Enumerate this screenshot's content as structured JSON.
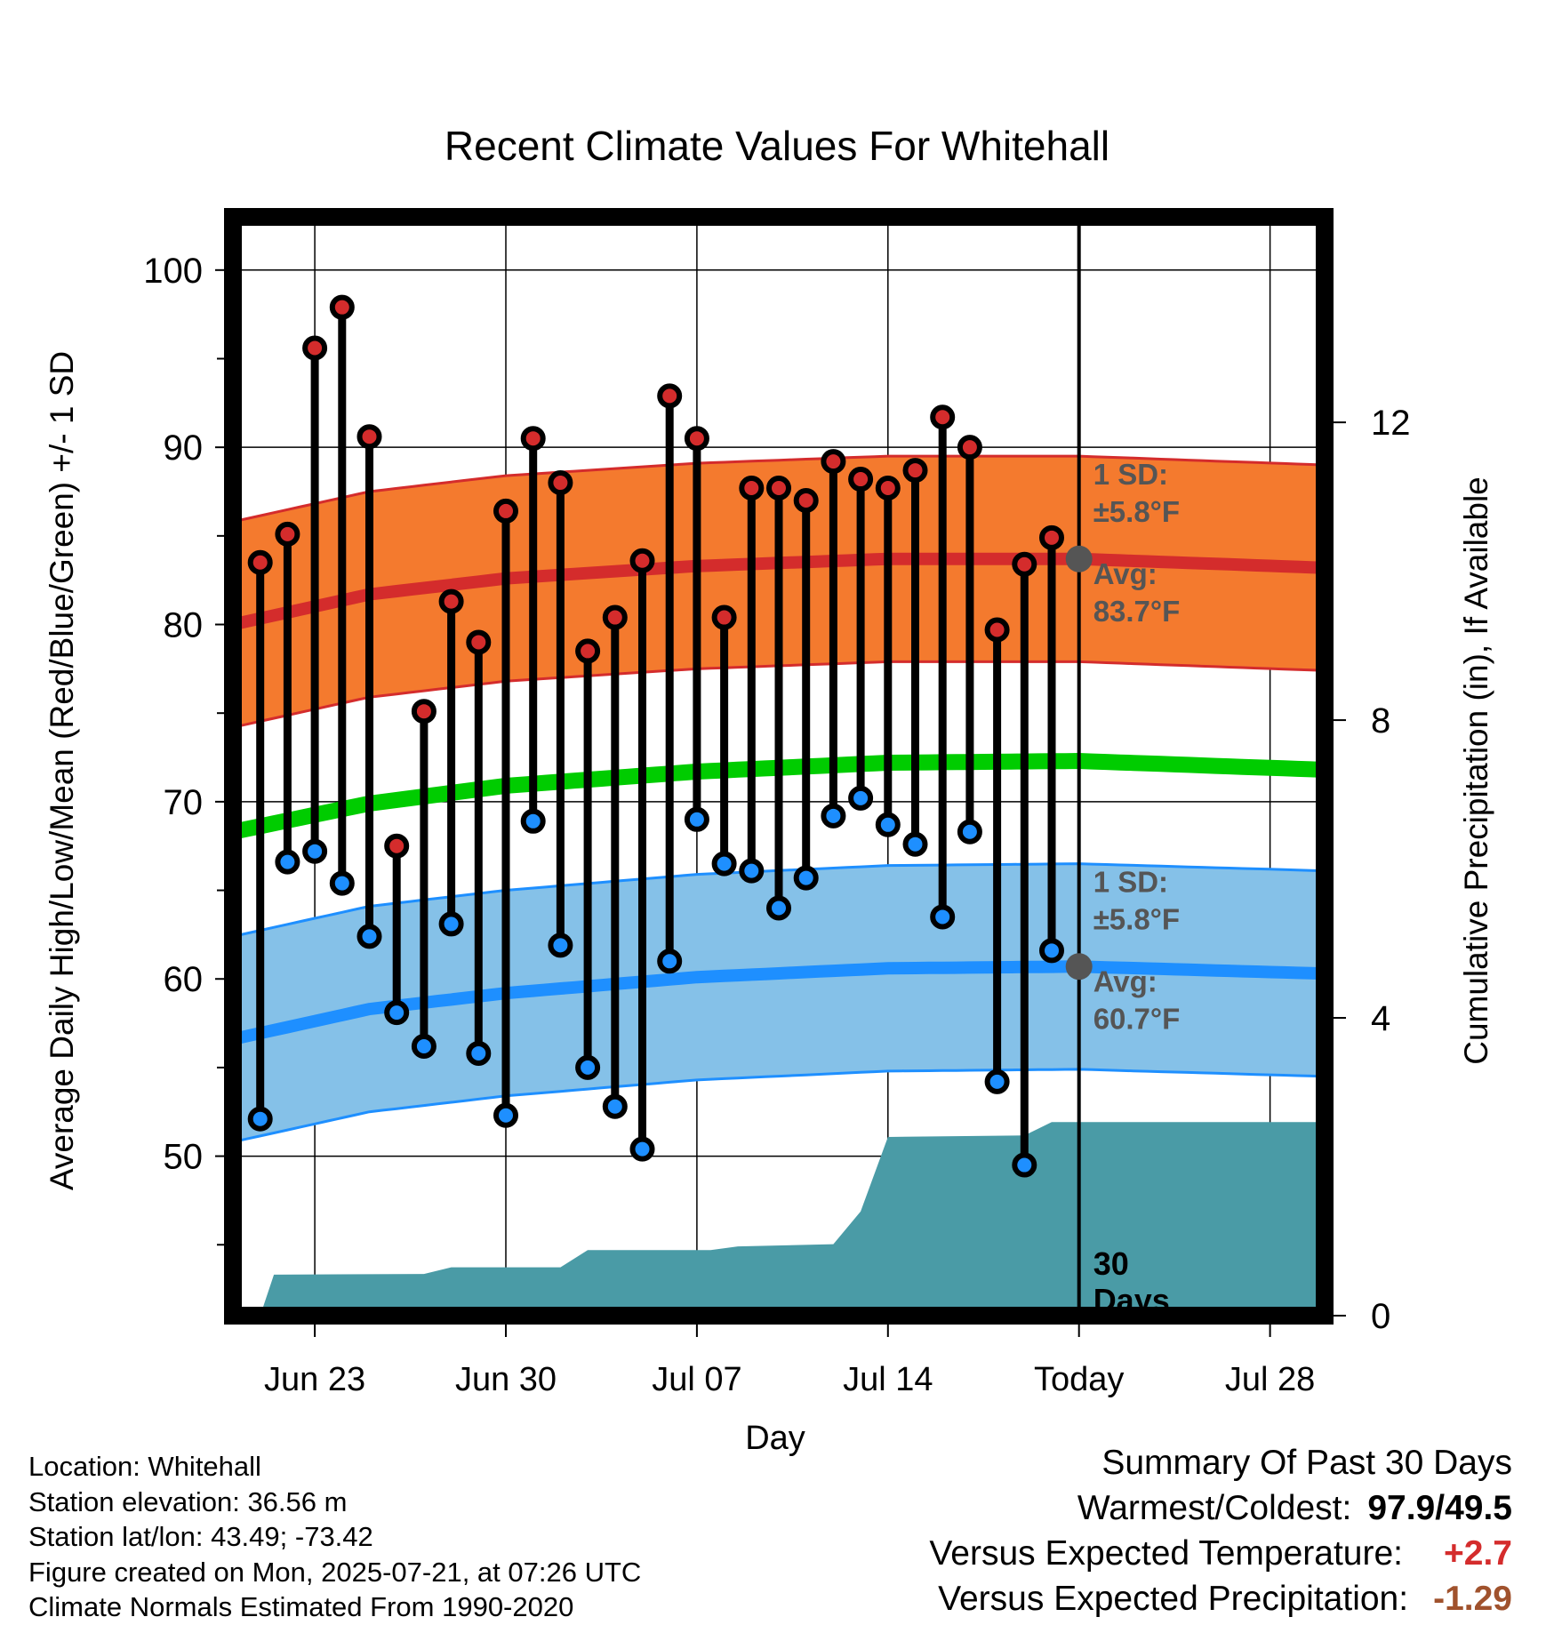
{
  "colors": {
    "high_band": "#F47A2E",
    "high_band_edge": "#D42C2C",
    "high_avg_line": "#D42C2C",
    "low_band": "#85C1E8",
    "low_band_edge": "#1E8FFF",
    "low_avg_line": "#1E8FFF",
    "mean_line": "#00CC00",
    "precip_fill": "#4A9BA6",
    "high_marker": "#D42C2C",
    "low_marker": "#1E8FFF",
    "temp_anomaly": "#D42C2C",
    "precip_anomaly": "#A0522D",
    "today_marker": "#555555"
  },
  "chart_data": {
    "type": "line",
    "title": "Recent Climate Values For Whitehall",
    "xlabel": "Day",
    "ylabel": "Average Daily High/Low/Mean (Red/Blue/Green) +/- 1 SD",
    "y2label": "Cumulative Precipitation (in), If Available",
    "x_tick_labels": [
      "Jun 23",
      "Jun 30",
      "Jul 07",
      "Jul 14",
      "Today",
      "Jul 28"
    ],
    "x_tick_days": [
      2,
      9,
      16,
      23,
      30,
      37
    ],
    "x_range_days": [
      -1.0,
      39.0
    ],
    "x_start": "Jun 21",
    "ylim": [
      41,
      103
    ],
    "y_ticks": [
      50,
      60,
      70,
      80,
      90,
      100
    ],
    "y2lim": [
      0,
      14.76
    ],
    "y2_ticks": [
      0,
      4,
      8,
      12
    ],
    "grid": true,
    "days": [
      0,
      1,
      2,
      3,
      4,
      5,
      6,
      7,
      8,
      9,
      10,
      11,
      12,
      13,
      14,
      15,
      16,
      17,
      18,
      19,
      20,
      21,
      22,
      23,
      24,
      25,
      26,
      27,
      28,
      29
    ],
    "daily_high": [
      83.5,
      85.1,
      95.6,
      97.9,
      90.6,
      67.5,
      75.1,
      81.3,
      79.0,
      86.4,
      90.5,
      88.0,
      78.5,
      80.4,
      83.6,
      92.9,
      90.5,
      80.4,
      87.7,
      87.7,
      87.0,
      89.2,
      88.2,
      87.7,
      88.7,
      91.7,
      90.0,
      79.7,
      83.4,
      84.9
    ],
    "daily_low": [
      52.1,
      66.6,
      67.2,
      65.4,
      62.4,
      58.1,
      56.2,
      63.1,
      55.8,
      52.3,
      68.9,
      61.9,
      55.0,
      52.8,
      50.4,
      61.0,
      69.0,
      66.5,
      66.1,
      64.0,
      65.7,
      69.2,
      70.2,
      68.7,
      67.6,
      63.5,
      68.3,
      54.2,
      49.5,
      61.6
    ],
    "normal_days": [
      -1,
      4,
      9,
      16,
      23,
      30,
      39
    ],
    "normal_high": [
      80.0,
      81.7,
      82.6,
      83.3,
      83.7,
      83.7,
      83.2
    ],
    "normal_low": [
      56.6,
      58.3,
      59.2,
      60.1,
      60.6,
      60.7,
      60.3
    ],
    "normal_mean": [
      68.3,
      69.9,
      70.9,
      71.7,
      72.2,
      72.3,
      71.8
    ],
    "high_sd": 5.8,
    "low_sd": 5.8,
    "precip_days": [
      -1.0,
      0.0,
      0.5,
      6.0,
      7.0,
      11.0,
      12.0,
      16.5,
      17.5,
      21.0,
      22.0,
      23.0,
      28.0,
      29.0,
      30.0,
      39.0
    ],
    "precip_cum": [
      0.0,
      0.0,
      0.55,
      0.56,
      0.65,
      0.65,
      0.88,
      0.88,
      0.93,
      0.96,
      1.4,
      2.4,
      2.42,
      2.6,
      2.6,
      2.6
    ],
    "annotations": {
      "high_sd_label": "1 SD:",
      "high_sd_value": "±5.8°F",
      "high_avg_label": "Avg:",
      "high_avg_value": "83.7°F",
      "low_sd_label": "1 SD:",
      "low_sd_value": "±5.8°F",
      "low_avg_label": "Avg:",
      "low_avg_value": "60.7°F",
      "days_count": "30",
      "days_word": "Days"
    }
  },
  "footer": {
    "location": "Location: Whitehall",
    "elevation": "Station elevation: 36.56 m",
    "latlon": "Station lat/lon: 43.49; -73.42",
    "created": "Figure created on Mon, 2025-07-21, at 07:26 UTC",
    "normals": "Climate Normals Estimated From 1990-2020"
  },
  "summary": {
    "title": "Summary Of Past 30 Days",
    "warmest_label": "Warmest/Coldest:",
    "warmest_value": "97.9/49.5",
    "temp_label": "Versus Expected Temperature:",
    "temp_value": "+2.7",
    "precip_label": "Versus Expected Precipitation:",
    "precip_value": "-1.29"
  }
}
